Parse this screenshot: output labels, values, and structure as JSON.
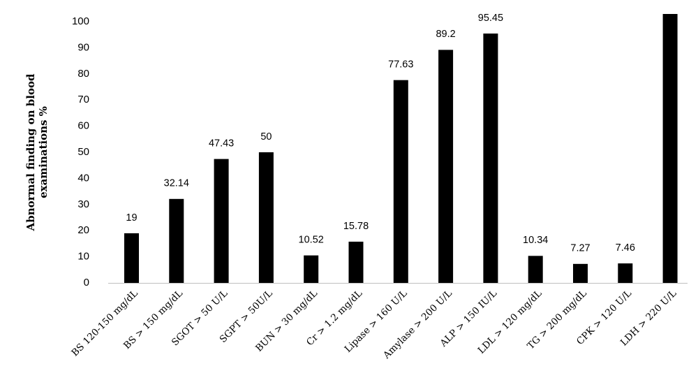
{
  "chart_data": {
    "type": "bar",
    "title": "",
    "xlabel": "",
    "ylabel": [
      "Abnormal finding on blood",
      "examinations %"
    ],
    "categories": [
      "BS 120-150 mg/dL",
      "BS > 150 mg/dL",
      "SGOT > 50 U/L",
      "SGPT > 50U/L",
      "BUN > 30 mg/dL",
      "Cr > 1.2 mg/dL",
      "Lipase > 160 U/L",
      "Amylase > 200 U/L",
      "ALP > 150 IU/L",
      "LDL > 120 mg/dL",
      "TG > 200 mg/dL",
      "CPK > 120 U/L",
      "LDH > 220 U/L"
    ],
    "values": [
      19,
      32.14,
      47.43,
      50,
      10.52,
      15.78,
      77.63,
      89.2,
      95.45,
      10.34,
      7.27,
      7.46,
      100
    ],
    "data_labels": [
      "19",
      "32.14",
      "47.43",
      "50",
      "10.52",
      "15.78",
      "77.63",
      "89.2",
      "95.45",
      "10.34",
      "7.27",
      "7.46",
      ""
    ],
    "y_ticks": [
      "0",
      "10",
      "20",
      "30",
      "40",
      "50",
      "60",
      "70",
      "80",
      "90",
      "100"
    ],
    "ylim": [
      0,
      100
    ],
    "grid": false,
    "legend": "none",
    "bar_color": "#000000"
  }
}
